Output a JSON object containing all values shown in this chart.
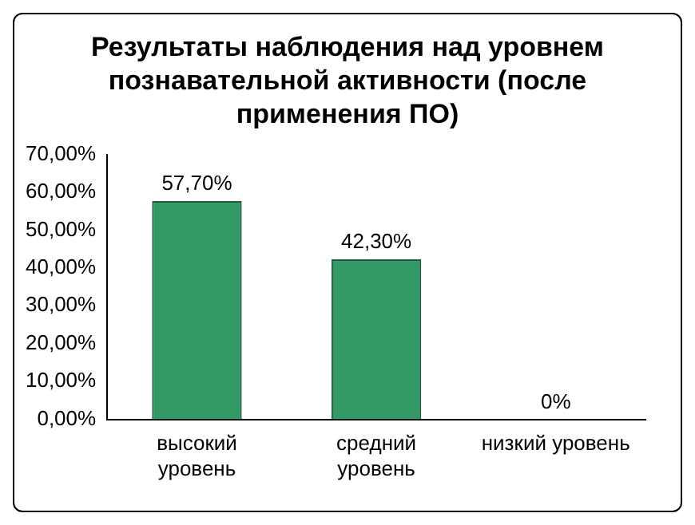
{
  "chart_data": {
    "type": "bar",
    "title": "Результаты наблюдения над уровнем познавательной активности (после применения ПО)",
    "categories": [
      "высокий уровень",
      "средний уровень",
      "низкий уровень"
    ],
    "values": [
      57.7,
      42.3,
      0
    ],
    "value_labels": [
      "57,70%",
      "42,30%",
      "0%"
    ],
    "color": "#339966",
    "ylim": [
      0,
      70
    ],
    "yticks": [
      {
        "value": 0,
        "label": "0,00%"
      },
      {
        "value": 10,
        "label": "10,00%"
      },
      {
        "value": 20,
        "label": "20,00%"
      },
      {
        "value": 30,
        "label": "30,00%"
      },
      {
        "value": 40,
        "label": "40,00%"
      },
      {
        "value": 50,
        "label": "50,00%"
      },
      {
        "value": 60,
        "label": "60,00%"
      },
      {
        "value": 70,
        "label": "70,00%"
      }
    ],
    "grid": false,
    "legend": false
  }
}
